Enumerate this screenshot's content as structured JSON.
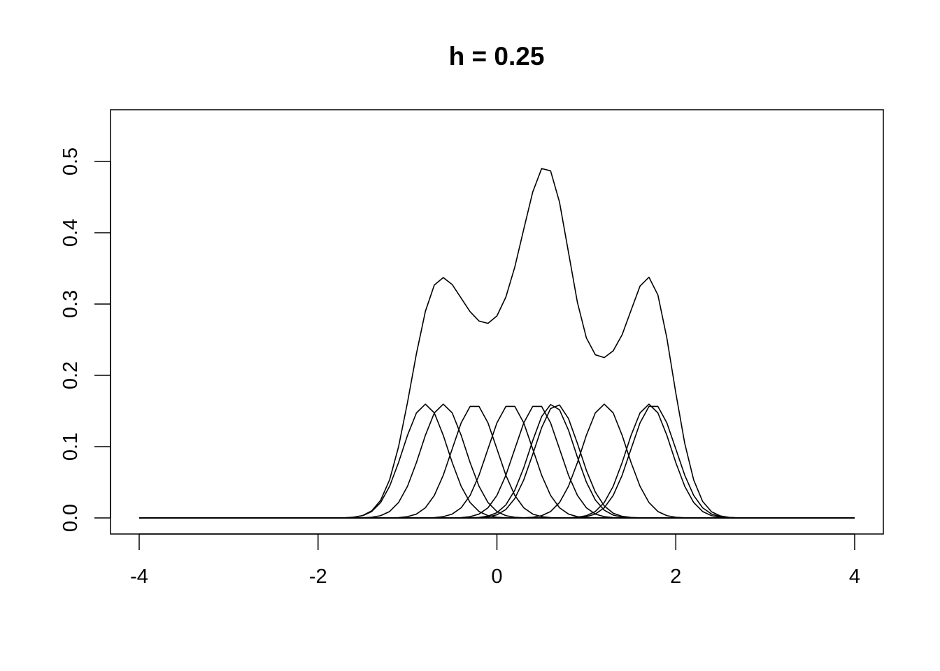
{
  "chart_data": {
    "type": "line",
    "title": "h = 0.25",
    "xlabel": "",
    "ylabel": "",
    "xlim": [
      -4,
      4
    ],
    "ylim": [
      0,
      0.55
    ],
    "x_ticks": [
      -4,
      -2,
      0,
      2,
      4
    ],
    "y_ticks": [
      0.0,
      0.1,
      0.2,
      0.3,
      0.4,
      0.5
    ],
    "x_tick_labels": [
      "-4",
      "-2",
      "0",
      "2",
      "4"
    ],
    "y_tick_labels": [
      "0.0",
      "0.1",
      "0.2",
      "0.3",
      "0.4",
      "0.5"
    ],
    "grid": false,
    "legend": "none",
    "line_color": "#000000",
    "grid_x": {
      "from": -4,
      "to": 4,
      "step": 0.1
    },
    "kernel": "gaussian",
    "bandwidth": 0.25,
    "series_description": "kernel density estimate and its individual scaled gaussian bumps",
    "data_points": [
      -0.8,
      -0.6,
      -0.25,
      0.15,
      0.45,
      0.62,
      0.67,
      1.2,
      1.7,
      1.75
    ],
    "bump_peak": 0.16,
    "density_peak": 0.49
  }
}
